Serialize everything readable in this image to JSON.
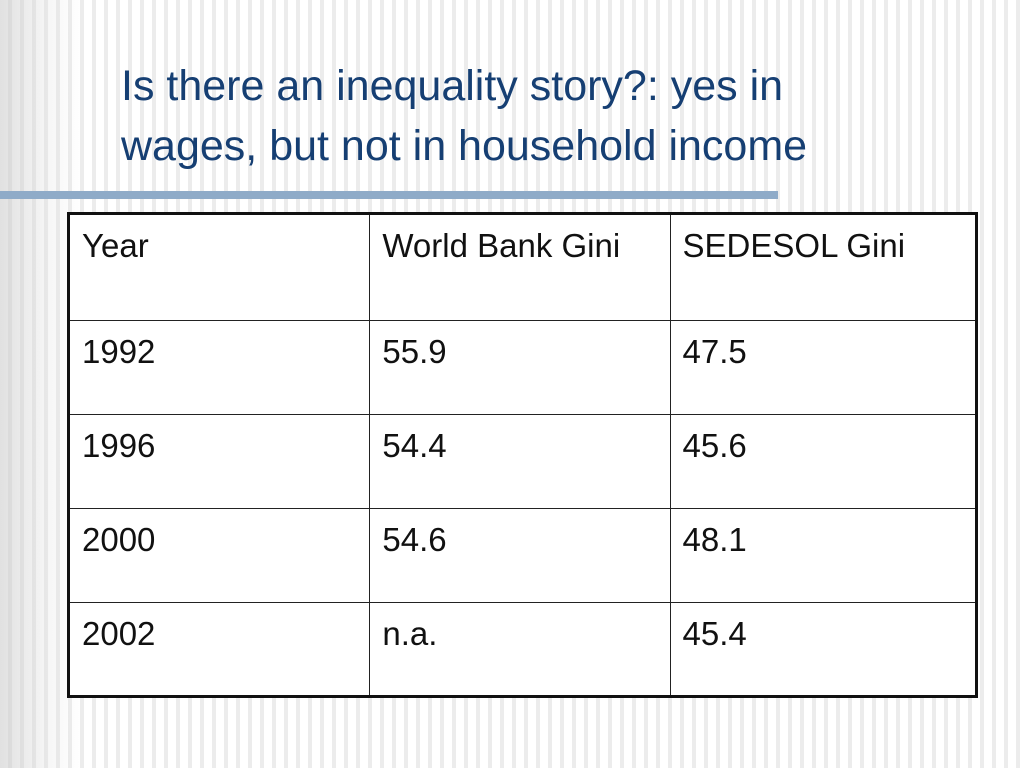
{
  "slide": {
    "title_line1": "Is there an inequality story?: yes in",
    "title_line2": "wages, but not in household income"
  },
  "table": {
    "headers": [
      "Year",
      "World Bank Gini",
      "SEDESOL Gini"
    ],
    "rows": [
      [
        "1992",
        "55.9",
        "47.5"
      ],
      [
        "1996",
        "54.4",
        "45.6"
      ],
      [
        "2000",
        "54.6",
        "48.1"
      ],
      [
        "2002",
        "n.a.",
        "45.4"
      ]
    ]
  },
  "colors": {
    "title": "#163f73",
    "rule": "#8fabc8",
    "background": "#f7f7f7",
    "border": "#111111"
  }
}
